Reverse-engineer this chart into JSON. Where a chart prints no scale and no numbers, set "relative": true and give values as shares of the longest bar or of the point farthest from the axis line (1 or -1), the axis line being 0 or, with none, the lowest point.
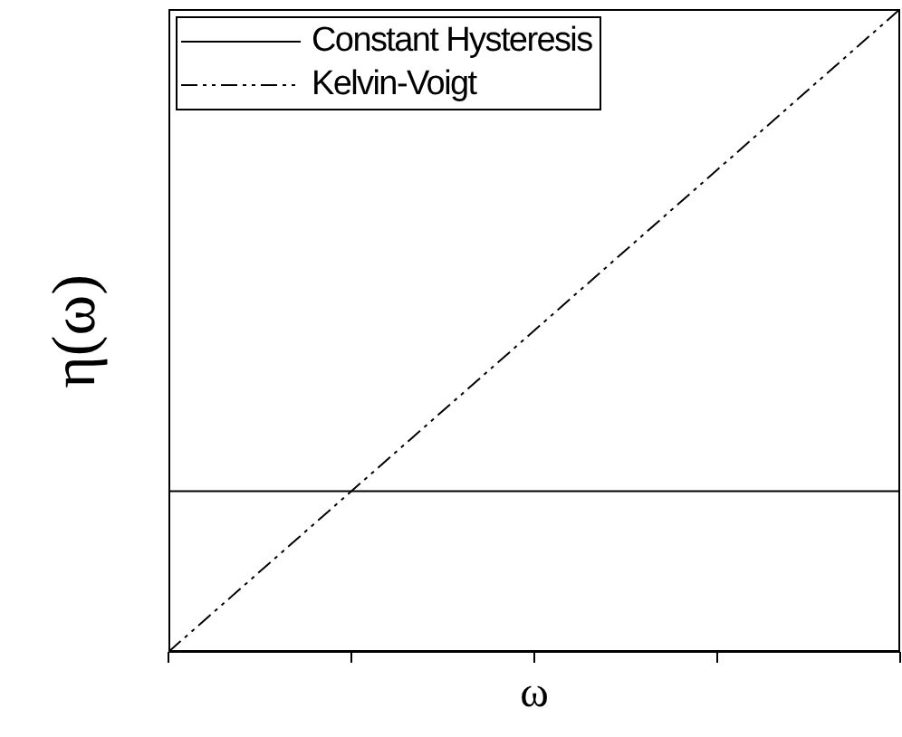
{
  "chart_data": {
    "type": "line",
    "xlabel": "ω",
    "ylabel": "η(ω)",
    "relative": true,
    "categories": [
      null,
      null,
      null,
      null,
      null
    ],
    "grid": false,
    "legend": "top left",
    "marker": "none",
    "series": [
      {
        "name": "Constant Hysteresis",
        "color": "#000000",
        "line_style": "solid",
        "values": [
          0.25,
          0.25,
          0.25,
          0.25,
          0.25
        ]
      },
      {
        "name": "Kelvin-Voigt",
        "color": "#000000",
        "line_style": "dashed",
        "values": [
          0,
          0.25,
          0.5,
          0.75,
          1
        ]
      }
    ]
  }
}
